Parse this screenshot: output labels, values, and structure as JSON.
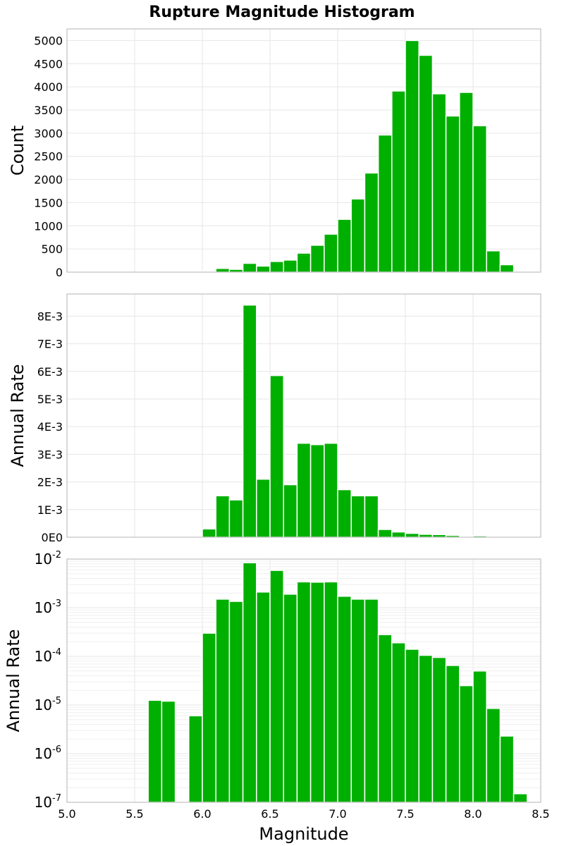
{
  "title": "Rupture Magnitude Histogram",
  "colors": {
    "bar": "#00b000",
    "grid": "#e6e6e6",
    "frame": "#b3b3b3"
  },
  "chart_data": [
    {
      "type": "bar",
      "panel": "count",
      "xlabel": "",
      "ylabel": "Count",
      "xlim": [
        5.0,
        8.5
      ],
      "ylim": [
        0,
        5250
      ],
      "bin_width": 0.1,
      "yticks": [
        0,
        500,
        1000,
        1500,
        2000,
        2500,
        3000,
        3500,
        4000,
        4500,
        5000
      ],
      "ytick_labels": [
        "0",
        "500",
        "1000",
        "1500",
        "2000",
        "2500",
        "3000",
        "3500",
        "4000",
        "4500",
        "5000"
      ],
      "x": [
        5.65,
        5.75,
        5.95,
        6.05,
        6.15,
        6.25,
        6.35,
        6.45,
        6.55,
        6.65,
        6.75,
        6.85,
        6.95,
        7.05,
        7.15,
        7.25,
        7.35,
        7.45,
        7.55,
        7.65,
        7.75,
        7.85,
        7.95,
        8.05,
        8.15,
        8.25,
        8.35
      ],
      "values": [
        5,
        5,
        5,
        20,
        80,
        60,
        190,
        130,
        230,
        260,
        410,
        580,
        820,
        1140,
        1580,
        2140,
        2960,
        3910,
        5000,
        4680,
        3850,
        3370,
        3880,
        3160,
        460,
        160,
        15
      ],
      "grid": true
    },
    {
      "type": "bar",
      "panel": "annual-rate-linear",
      "xlabel": "",
      "ylabel": "Annual Rate",
      "xlim": [
        5.0,
        8.5
      ],
      "ylim": [
        0,
        0.0088
      ],
      "bin_width": 0.1,
      "yticks": [
        0,
        0.001,
        0.002,
        0.003,
        0.004,
        0.005,
        0.006,
        0.007,
        0.008
      ],
      "ytick_labels": [
        "0E0",
        "1E-3",
        "2E-3",
        "3E-3",
        "4E-3",
        "5E-3",
        "6E-3",
        "7E-3",
        "8E-3"
      ],
      "x": [
        5.65,
        5.75,
        5.95,
        6.05,
        6.15,
        6.25,
        6.35,
        6.45,
        6.55,
        6.65,
        6.75,
        6.85,
        6.95,
        7.05,
        7.15,
        7.25,
        7.35,
        7.45,
        7.55,
        7.65,
        7.75,
        7.85,
        7.95,
        8.05,
        8.15,
        8.25,
        8.35
      ],
      "values": [
        1.25e-05,
        1.2e-05,
        6e-06,
        0.0003,
        0.0015,
        0.00135,
        0.0084,
        0.0021,
        0.00585,
        0.0019,
        0.0034,
        0.00335,
        0.0034,
        0.00172,
        0.0015,
        0.0015,
        0.00028,
        0.00019,
        0.00014,
        0.000105,
        9.5e-05,
        6.5e-05,
        2.5e-05,
        5e-05,
        8.5e-06,
        2.3e-06,
        1.5e-07
      ],
      "grid": true
    },
    {
      "type": "bar",
      "panel": "annual-rate-log",
      "xlabel": "Magnitude",
      "ylabel": "Annual Rate",
      "yscale": "log",
      "xlim": [
        5.0,
        8.5
      ],
      "ylim": [
        1e-07,
        0.01
      ],
      "bin_width": 0.1,
      "ytick_exponents": [
        -2,
        -3,
        -4,
        -5,
        -6,
        -7
      ],
      "ytick_base": "10",
      "xticks": [
        5.0,
        5.5,
        6.0,
        6.5,
        7.0,
        7.5,
        8.0,
        8.5
      ],
      "xtick_labels": [
        "5.0",
        "5.5",
        "6.0",
        "6.5",
        "7.0",
        "7.5",
        "8.0",
        "8.5"
      ],
      "x": [
        5.65,
        5.75,
        5.95,
        6.05,
        6.15,
        6.25,
        6.35,
        6.45,
        6.55,
        6.65,
        6.75,
        6.85,
        6.95,
        7.05,
        7.15,
        7.25,
        7.35,
        7.45,
        7.55,
        7.65,
        7.75,
        7.85,
        7.95,
        8.05,
        8.15,
        8.25,
        8.35
      ],
      "values": [
        1.25e-05,
        1.2e-05,
        6e-06,
        0.0003,
        0.0015,
        0.00135,
        0.0084,
        0.0021,
        0.00585,
        0.0019,
        0.0034,
        0.00335,
        0.0034,
        0.00172,
        0.0015,
        0.0015,
        0.00028,
        0.00019,
        0.00014,
        0.000105,
        9.5e-05,
        6.5e-05,
        2.5e-05,
        5e-05,
        8.5e-06,
        2.3e-06,
        1.5e-07
      ],
      "grid": true
    }
  ]
}
